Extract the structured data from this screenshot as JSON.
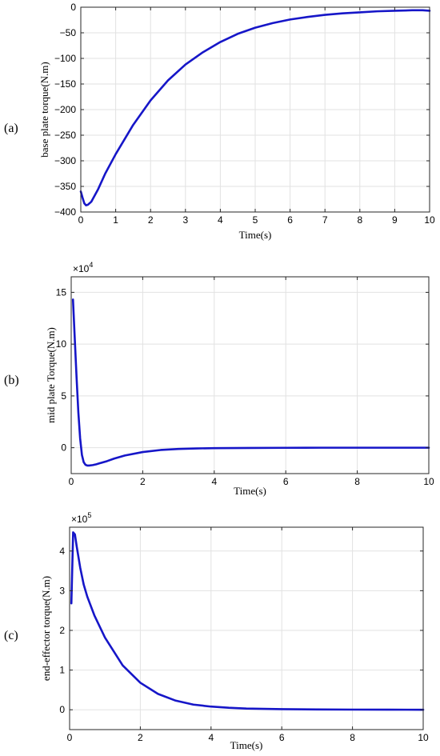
{
  "colors": {
    "series": "#1616c8"
  },
  "chart_data": [
    {
      "type": "line",
      "panel_label": "(a)",
      "title": "",
      "xlabel": "Time(s)",
      "ylabel": "base plate torque(N.m)",
      "multiplier": "",
      "xlim": [
        0,
        10
      ],
      "ylim": [
        -400,
        0
      ],
      "xticks": [
        0,
        1,
        2,
        3,
        4,
        5,
        6,
        7,
        8,
        9,
        10
      ],
      "yticks": [
        0,
        -50,
        -100,
        -150,
        -200,
        -250,
        -300,
        -350,
        -400
      ],
      "grid": true,
      "series": [
        {
          "x": [
            0.0,
            0.05,
            0.1,
            0.15,
            0.2,
            0.3,
            0.5,
            0.7,
            1.0,
            1.5,
            2.0,
            2.5,
            3.0,
            3.5,
            4.0,
            4.5,
            5.0,
            5.5,
            6.0,
            6.5,
            7.0,
            7.5,
            8.0,
            8.5,
            9.0,
            9.5,
            9.8,
            10.0
          ],
          "y": [
            -360,
            -372,
            -383,
            -387,
            -386,
            -380,
            -355,
            -325,
            -287,
            -230,
            -182,
            -143,
            -112,
            -88,
            -68,
            -52,
            -40,
            -31,
            -24,
            -19,
            -15,
            -12,
            -10,
            -8,
            -7,
            -6,
            -6,
            -7
          ]
        }
      ]
    },
    {
      "type": "line",
      "panel_label": "(b)",
      "title": "",
      "xlabel": "Time(s)",
      "ylabel": "mid plate Torque(N.m)",
      "multiplier": "×10",
      "multiplier_exp": "4",
      "xlim": [
        0,
        10
      ],
      "ylim": [
        -2.5,
        16.5
      ],
      "xticks": [
        0,
        2,
        4,
        6,
        8,
        10
      ],
      "xticklabels": [
        "0",
        "2",
        "4",
        "6",
        "8",
        "10"
      ],
      "yticks": [
        0,
        5,
        10,
        15
      ],
      "yticklabels": [
        "0",
        "5",
        "10",
        "15"
      ],
      "grid": true,
      "series": [
        {
          "x": [
            0.05,
            0.1,
            0.15,
            0.2,
            0.25,
            0.3,
            0.35,
            0.4,
            0.45,
            0.5,
            0.6,
            0.7,
            0.8,
            1.0,
            1.2,
            1.5,
            2.0,
            2.5,
            3.0,
            3.5,
            4.0,
            5.0,
            6.0,
            7.0,
            8.0,
            9.0,
            10.0
          ],
          "y": [
            14.3,
            10.5,
            6.8,
            3.4,
            0.9,
            -0.7,
            -1.4,
            -1.65,
            -1.72,
            -1.72,
            -1.68,
            -1.6,
            -1.5,
            -1.3,
            -1.05,
            -0.75,
            -0.42,
            -0.22,
            -0.12,
            -0.07,
            -0.04,
            -0.02,
            -0.01,
            0,
            0,
            0,
            0
          ]
        }
      ]
    },
    {
      "type": "line",
      "panel_label": "(c)",
      "title": "",
      "xlabel": "Time(s)",
      "ylabel": "end-effector torque(N.m)",
      "multiplier": "×10",
      "multiplier_exp": "5",
      "xlim": [
        0,
        10
      ],
      "ylim": [
        -0.5,
        4.6
      ],
      "xticks": [
        0,
        2,
        4,
        6,
        8,
        10
      ],
      "xticklabels": [
        "0",
        "2",
        "4",
        "6",
        "8",
        "10"
      ],
      "yticks": [
        0,
        1,
        2,
        3,
        4
      ],
      "yticklabels": [
        "0",
        "1",
        "2",
        "3",
        "4"
      ],
      "grid": true,
      "series": [
        {
          "x": [
            0.05,
            0.1,
            0.15,
            0.2,
            0.3,
            0.4,
            0.5,
            0.7,
            1.0,
            1.5,
            2.0,
            2.5,
            3.0,
            3.5,
            4.0,
            4.5,
            5.0,
            6.0,
            7.0,
            8.0,
            9.0,
            10.0
          ],
          "y": [
            2.68,
            4.47,
            4.42,
            4.12,
            3.58,
            3.15,
            2.85,
            2.38,
            1.82,
            1.12,
            0.68,
            0.4,
            0.23,
            0.13,
            0.08,
            0.05,
            0.03,
            0.015,
            0.008,
            0.004,
            0.002,
            0.001
          ]
        }
      ]
    }
  ]
}
